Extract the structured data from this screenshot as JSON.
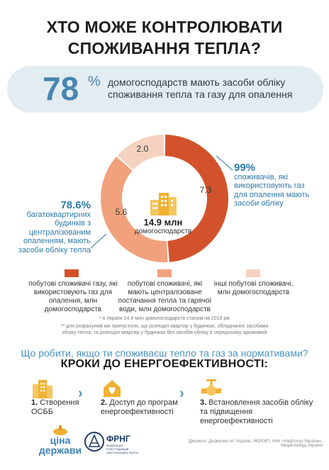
{
  "title_line1": "ХТО МОЖЕ КОНТРОЛЮВАТИ",
  "title_line2": "СПОЖИВАННЯ ТЕПЛА?",
  "stat": {
    "value": "78",
    "unit": "%",
    "text": "домогосподарств мають засоби обліку споживання тепла та газу для опалення"
  },
  "chart_data": {
    "type": "pie",
    "center_value": "14.9 млн",
    "center_label": "домогосподарств",
    "categories": [
      "побутові споживачі газу, які використовують газ для опалення, млн домогосподарств",
      "побутові споживачі, які мають централізоване постачання тепла та гарячої води, млн домогосподарств",
      "інші побутові споживачі, млн домогосподарств"
    ],
    "values": [
      7.3,
      5.6,
      2.0
    ],
    "value_labels": [
      "7.3",
      "5.6",
      "2.0"
    ],
    "colors": [
      "#d2532b",
      "#f1a27c",
      "#f5d2bf"
    ]
  },
  "right_note": {
    "pct": "99%",
    "text": "споживачів, які використовують газ для опалення мають засоби обліку"
  },
  "left_note": {
    "pct": "78.6%",
    "text": "багатоквартирних будинків з централізованим опаленням, мають засоби обліку тепла"
  },
  "legend": [
    {
      "text": "побутові споживачі газу, які використовують газ для опалення, млн домогосподарств",
      "color": "#d2532b"
    },
    {
      "text": "побутові споживачі, які мають централізоване постачання тепла та гарячої води, млн домогосподарств",
      "color": "#f1a27c"
    },
    {
      "text": "інші побутові споживачі, млн домогосподарств",
      "color": "#f5d2bf"
    }
  ],
  "footnote1": "* в Україні 14.9 млн домогосподарств станом на 2018 рік",
  "footnote2": "** для розрахунків ми припустили, що розподіл квартир у будинках, обладнаних засобами обліку тепла, та розподіл квартир у будинках без засобів обліку в середньому однаковий",
  "question": "Що робити, якщо ти споживаєш тепло та газ за нормативами?",
  "subhead": "КРОКИ ДО ЕНЕРГОЕФЕКТИВНОСТІ:",
  "steps": [
    {
      "num": "1.",
      "text": "Створення ОСББ",
      "icon": "building-icon"
    },
    {
      "num": "2.",
      "text": "Доступ до програм енергоефективності",
      "icon": "house-heart-icon"
    },
    {
      "num": "3.",
      "text": "Встановлення засобів обліку та підвищення енергоефективності",
      "icon": "valve-icon"
    }
  ],
  "logo1": {
    "line1": "ціна",
    "line2": "держави"
  },
  "logo2": {
    "name": "ФРНГ",
    "sub": "ФЕДЕРАЦІЯ РОБОТОДАВЦІВ НАФТОГАЗОВОЇ ГАЛУЗІ"
  },
  "sources": "Джерело: Держкомстат України, НКРЕКП, НАК «Нафтогаз України», Мінрегіонбуд України"
}
